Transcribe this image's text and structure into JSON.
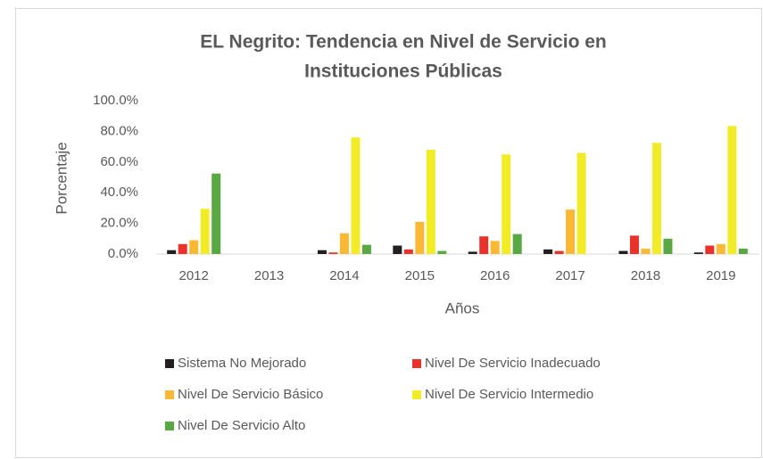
{
  "chart_data": {
    "type": "bar",
    "title_lines": [
      "EL Negrito: Tendencia en Nivel de Servicio en",
      "Instituciones Públicas"
    ],
    "x_label": "Años",
    "y_label": "Porcentaje",
    "categories": [
      "2012",
      "2013",
      "2014",
      "2015",
      "2016",
      "2017",
      "2018",
      "2019"
    ],
    "series": [
      {
        "name": "Sistema No Mejorado",
        "color": "#231f20",
        "values": [
          2.5,
          0,
          2.5,
          5.5,
          1.5,
          3,
          2,
          1
        ]
      },
      {
        "name": "Nivel De Servicio Inadecuado",
        "color": "#e8322b",
        "values": [
          6.5,
          0,
          1,
          3,
          11.5,
          2,
          12,
          5.5
        ]
      },
      {
        "name": "Nivel De Servicio Básico",
        "color": "#fbb834",
        "values": [
          9,
          0,
          13.5,
          21,
          8.5,
          29,
          3.5,
          6.5
        ]
      },
      {
        "name": "Nivel De Servicio Intermedio",
        "color": "#f2ec28",
        "values": [
          29.5,
          0,
          76,
          68,
          65,
          66,
          72.5,
          83.5
        ]
      },
      {
        "name": "Nivel De Servicio Alto",
        "color": "#5aa843",
        "values": [
          52.5,
          0,
          6,
          2,
          13,
          0,
          10,
          3.5
        ]
      }
    ],
    "ylim": [
      0,
      100
    ],
    "yticks": [
      {
        "value": 0,
        "label": "0.0%"
      },
      {
        "value": 20,
        "label": "20.0%"
      },
      {
        "value": 40,
        "label": "40.0%"
      },
      {
        "value": 60,
        "label": "60.0%"
      },
      {
        "value": 80,
        "label": "80.0%"
      },
      {
        "value": 100,
        "label": "100.0%"
      }
    ],
    "grid": false,
    "legend": "bottom"
  }
}
